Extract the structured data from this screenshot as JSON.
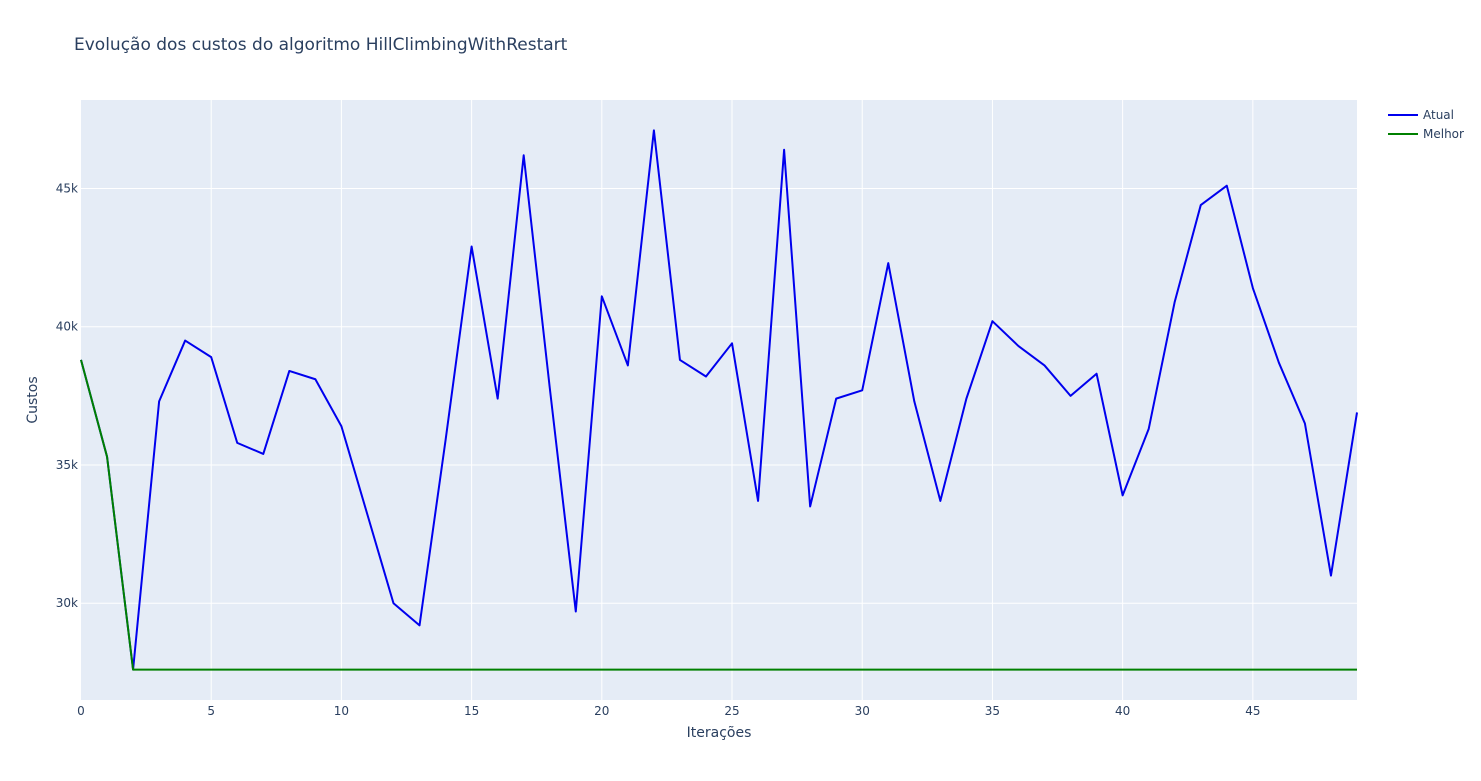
{
  "chart_data": {
    "type": "line",
    "title": "Evolução dos custos do algoritmo HillClimbingWithRestart",
    "xlabel": "Iterações",
    "ylabel": "Custos",
    "xlim": [
      0,
      49
    ],
    "ylim": [
      26500,
      48200
    ],
    "x_ticks": [
      0,
      5,
      10,
      15,
      20,
      25,
      30,
      35,
      40,
      45
    ],
    "x_tick_labels": [
      "0",
      "5",
      "10",
      "15",
      "20",
      "25",
      "30",
      "35",
      "40",
      "45"
    ],
    "y_ticks": [
      30000,
      35000,
      40000,
      45000
    ],
    "y_tick_labels": [
      "30k",
      "35k",
      "40k",
      "45k"
    ],
    "grid": true,
    "legend_position": "top-right",
    "x": [
      0,
      1,
      2,
      3,
      4,
      5,
      6,
      7,
      8,
      9,
      10,
      11,
      12,
      13,
      14,
      15,
      16,
      17,
      18,
      19,
      20,
      21,
      22,
      23,
      24,
      25,
      26,
      27,
      28,
      29,
      30,
      31,
      32,
      33,
      34,
      35,
      36,
      37,
      38,
      39,
      40,
      41,
      42,
      43,
      44,
      45,
      46,
      47,
      48,
      49
    ],
    "series": [
      {
        "name": "Atual",
        "color": "#0000ee",
        "values": [
          38800,
          35300,
          27600,
          37300,
          39500,
          38900,
          35800,
          35400,
          38400,
          38100,
          36400,
          33200,
          30000,
          29200,
          35900,
          42900,
          37400,
          46200,
          37800,
          29700,
          41100,
          38600,
          47100,
          38800,
          38200,
          39400,
          33700,
          46400,
          33500,
          37400,
          37700,
          42300,
          37300,
          33700,
          37400,
          40200,
          39300,
          38600,
          37500,
          38300,
          33900,
          36300,
          40900,
          44400,
          45100,
          41400,
          38700,
          36500,
          31000,
          36900
        ]
      },
      {
        "name": "Melhor",
        "color": "#008000",
        "values": [
          38800,
          35300,
          27600,
          27600,
          27600,
          27600,
          27600,
          27600,
          27600,
          27600,
          27600,
          27600,
          27600,
          27600,
          27600,
          27600,
          27600,
          27600,
          27600,
          27600,
          27600,
          27600,
          27600,
          27600,
          27600,
          27600,
          27600,
          27600,
          27600,
          27600,
          27600,
          27600,
          27600,
          27600,
          27600,
          27600,
          27600,
          27600,
          27600,
          27600,
          27600,
          27600,
          27600,
          27600,
          27600,
          27600,
          27600,
          27600,
          27600,
          27600
        ]
      }
    ],
    "plot_bg": "#e5ecf6",
    "grid_color": "#ffffff"
  }
}
